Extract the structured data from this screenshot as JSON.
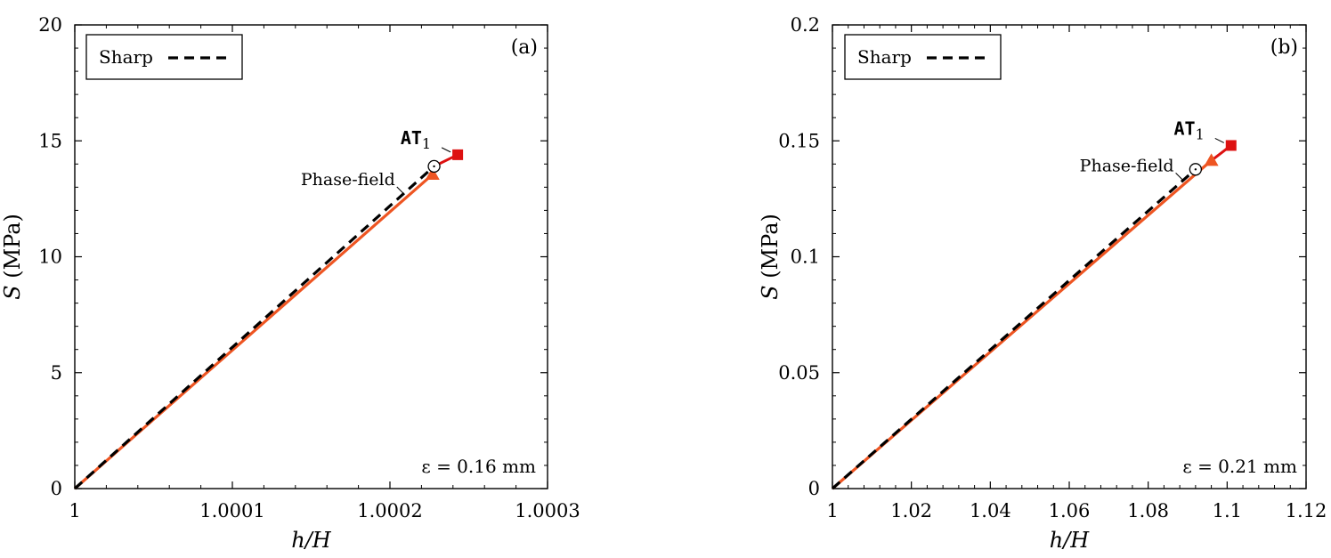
{
  "chart_data": [
    {
      "type": "line",
      "panel_label": "(a)",
      "xlabel": "h/H",
      "ylabel": "S (MPa)",
      "xlim": [
        1.0,
        1.0003
      ],
      "ylim": [
        0,
        20
      ],
      "x_ticks": [
        1.0,
        1.0001,
        1.0002,
        1.0003
      ],
      "x_tick_labels": [
        "1",
        "1.0001",
        "1.0002",
        "1.0003"
      ],
      "y_ticks": [
        0,
        5,
        10,
        15,
        20
      ],
      "y_tick_labels": [
        "0",
        "5",
        "10",
        "15",
        "20"
      ],
      "legend": [
        {
          "label": "Sharp",
          "style": "dashed",
          "color": "#000000"
        }
      ],
      "legend_position": "top-left",
      "annotation_eps": "ε = 0.16 mm",
      "label_phase_field": "Phase-field",
      "label_at1": "AT",
      "label_at1_sub": "1",
      "colors": {
        "phase_field": "#ee5522",
        "at1": "#dd1111",
        "sharp": "#000000"
      },
      "series": [
        {
          "name": "Sharp",
          "x": [
            1.0,
            1.000228
          ],
          "y": [
            0,
            13.9
          ]
        },
        {
          "name": "Phase-field",
          "x": [
            1.0,
            1.000227
          ],
          "y": [
            0,
            13.55
          ]
        },
        {
          "name": "AT1",
          "x": [
            1.000228,
            1.000243
          ],
          "y": [
            13.9,
            14.4
          ]
        }
      ],
      "markers": {
        "phase_field_end": {
          "x": 1.000227,
          "y": 13.55,
          "shape": "triangle"
        },
        "at1_end": {
          "x": 1.000243,
          "y": 14.4,
          "shape": "square"
        },
        "sharp_end": {
          "x": 1.000228,
          "y": 13.9,
          "shape": "circle"
        }
      }
    },
    {
      "type": "line",
      "panel_label": "(b)",
      "xlabel": "h/H",
      "ylabel": "S (MPa)",
      "xlim": [
        1.0,
        1.12
      ],
      "ylim": [
        0,
        0.2
      ],
      "x_ticks": [
        1.0,
        1.02,
        1.04,
        1.06,
        1.08,
        1.1,
        1.12
      ],
      "x_tick_labels": [
        "1",
        "1.02",
        "1.04",
        "1.06",
        "1.08",
        "1.1",
        "1.12"
      ],
      "y_ticks": [
        0,
        0.05,
        0.1,
        0.15,
        0.2
      ],
      "y_tick_labels": [
        "0",
        "0.05",
        "0.1",
        "0.15",
        "0.2"
      ],
      "legend": [
        {
          "label": "Sharp",
          "style": "dashed",
          "color": "#000000"
        }
      ],
      "legend_position": "top-left",
      "annotation_eps": "ε = 0.21 mm",
      "label_phase_field": "Phase-field",
      "label_at1": "AT",
      "label_at1_sub": "1",
      "colors": {
        "phase_field": "#ee5522",
        "at1": "#dd1111",
        "sharp": "#000000"
      },
      "series": [
        {
          "name": "Sharp",
          "x": [
            1.0,
            1.092
          ],
          "y": [
            0,
            0.1377
          ]
        },
        {
          "name": "Phase-field",
          "x": [
            1.0,
            1.096
          ],
          "y": [
            0,
            0.1415
          ]
        },
        {
          "name": "AT1",
          "x": [
            1.096,
            1.101
          ],
          "y": [
            0.1415,
            0.148
          ]
        }
      ],
      "markers": {
        "phase_field_end": {
          "x": 1.096,
          "y": 0.1415,
          "shape": "triangle"
        },
        "at1_end": {
          "x": 1.101,
          "y": 0.148,
          "shape": "square"
        },
        "sharp_end": {
          "x": 1.092,
          "y": 0.1377,
          "shape": "circle"
        }
      }
    }
  ]
}
